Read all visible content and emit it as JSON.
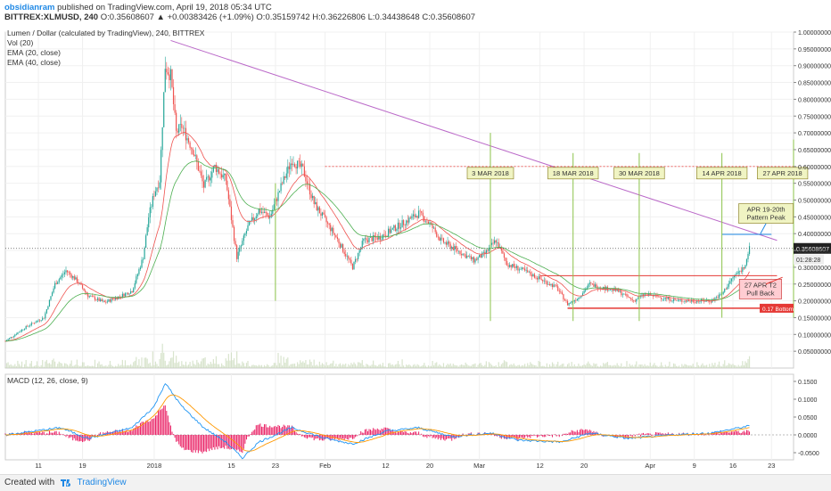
{
  "header": {
    "username": "obsidianram",
    "published": "published on TradingView.com, April 19, 2018 05:34 UTC",
    "symbol": "BITTREX:XLMUSD, 240",
    "ohlc": "O:0.35608607 ▲ +0.00383426 (+1.09%) O:0.35159742 H:0.36226806 L:0.34438648 C:0.35608607"
  },
  "legend": {
    "title": "Lumen / Dollar (calculated by TradingView), 240, BITTREX",
    "vol": "Vol (20)",
    "ema20": "EMA (20, close)",
    "ema40": "EMA (40, close)",
    "macd": "MACD (12, 26, close, 9)"
  },
  "footer": {
    "created": "Created with",
    "brand": "TradingView",
    "logo": "tradingview-logo-icon"
  },
  "colors": {
    "up": "#26a69a",
    "down": "#ef5350",
    "ema20": "#ef5350",
    "ema40": "#4caf50",
    "trend": "#ba68c8",
    "vline": "#8bc34a",
    "macd": "#2196f3",
    "signal": "#ff9800",
    "hist": "#e91e63",
    "support": "#e53935",
    "peak": "#1e88e5",
    "volume": "#c8d8b8"
  },
  "chart_data": {
    "type": "candlestick",
    "ylim": [
      0.0,
      1.0
    ],
    "price_ticks": [
      "1.00000000",
      "0.95000000",
      "0.90000000",
      "0.85000000",
      "0.80000000",
      "0.75000000",
      "0.70000000",
      "0.65000000",
      "0.60000000",
      "0.55000000",
      "0.50000000",
      "0.45000000",
      "0.40000000",
      "0.35000000",
      "0.30000000",
      "0.25000000",
      "0.20000000",
      "0.15000000",
      "0.10000000",
      "0.05000000"
    ],
    "macd_ticks": [
      "0.1500",
      "0.1000",
      "0.0500",
      "0.0000",
      "-0.0500"
    ],
    "x_ticks": [
      {
        "d": "2017-12-11",
        "label": "11"
      },
      {
        "d": "2017-12-19",
        "label": "19"
      },
      {
        "d": "2018-01-01",
        "label": "2018"
      },
      {
        "d": "2018-01-15",
        "label": "15"
      },
      {
        "d": "2018-01-23",
        "label": "23"
      },
      {
        "d": "2018-02-01",
        "label": "Feb"
      },
      {
        "d": "2018-02-12",
        "label": "12"
      },
      {
        "d": "2018-02-20",
        "label": "20"
      },
      {
        "d": "2018-03-01",
        "label": "Mar"
      },
      {
        "d": "2018-03-12",
        "label": "12"
      },
      {
        "d": "2018-03-20",
        "label": "20"
      },
      {
        "d": "2018-04-01",
        "label": "Apr"
      },
      {
        "d": "2018-04-09",
        "label": "9"
      },
      {
        "d": "2018-04-16",
        "label": "16"
      },
      {
        "d": "2018-04-23",
        "label": "23"
      }
    ],
    "x_range": [
      "2017-12-05",
      "2018-04-27"
    ],
    "price_path": [
      [
        "2017-12-05",
        0.08
      ],
      [
        "2017-12-09",
        0.125
      ],
      [
        "2017-12-12",
        0.15
      ],
      [
        "2017-12-14",
        0.25
      ],
      [
        "2017-12-16",
        0.29
      ],
      [
        "2017-12-18",
        0.26
      ],
      [
        "2017-12-20",
        0.215
      ],
      [
        "2017-12-23",
        0.195
      ],
      [
        "2017-12-26",
        0.215
      ],
      [
        "2017-12-28",
        0.23
      ],
      [
        "2017-12-30",
        0.33
      ],
      [
        "2017-12-31",
        0.45
      ],
      [
        "2018-01-01",
        0.52
      ],
      [
        "2018-01-02",
        0.56
      ],
      [
        "2018-01-03",
        0.9
      ],
      [
        "2018-01-04",
        0.87
      ],
      [
        "2018-01-05",
        0.7
      ],
      [
        "2018-01-06",
        0.72
      ],
      [
        "2018-01-08",
        0.65
      ],
      [
        "2018-01-10",
        0.54
      ],
      [
        "2018-01-12",
        0.6
      ],
      [
        "2018-01-14",
        0.56
      ],
      [
        "2018-01-16",
        0.33
      ],
      [
        "2018-01-18",
        0.42
      ],
      [
        "2018-01-20",
        0.47
      ],
      [
        "2018-01-22",
        0.45
      ],
      [
        "2018-01-24",
        0.54
      ],
      [
        "2018-01-26",
        0.62
      ],
      [
        "2018-01-28",
        0.59
      ],
      [
        "2018-01-30",
        0.49
      ],
      [
        "2018-02-01",
        0.44
      ],
      [
        "2018-02-03",
        0.39
      ],
      [
        "2018-02-06",
        0.3
      ],
      [
        "2018-02-08",
        0.38
      ],
      [
        "2018-02-11",
        0.39
      ],
      [
        "2018-02-14",
        0.42
      ],
      [
        "2018-02-16",
        0.44
      ],
      [
        "2018-02-18",
        0.46
      ],
      [
        "2018-02-20",
        0.43
      ],
      [
        "2018-02-22",
        0.38
      ],
      [
        "2018-02-25",
        0.35
      ],
      [
        "2018-02-28",
        0.32
      ],
      [
        "2018-03-02",
        0.34
      ],
      [
        "2018-03-04",
        0.38
      ],
      [
        "2018-03-06",
        0.31
      ],
      [
        "2018-03-09",
        0.29
      ],
      [
        "2018-03-12",
        0.265
      ],
      [
        "2018-03-15",
        0.24
      ],
      [
        "2018-03-17",
        0.19
      ],
      [
        "2018-03-19",
        0.21
      ],
      [
        "2018-03-21",
        0.25
      ],
      [
        "2018-03-23",
        0.24
      ],
      [
        "2018-03-26",
        0.23
      ],
      [
        "2018-03-29",
        0.2
      ],
      [
        "2018-03-31",
        0.22
      ],
      [
        "2018-04-03",
        0.21
      ],
      [
        "2018-04-06",
        0.2
      ],
      [
        "2018-04-09",
        0.2
      ],
      [
        "2018-04-12",
        0.2
      ],
      [
        "2018-04-14",
        0.22
      ],
      [
        "2018-04-16",
        0.27
      ],
      [
        "2018-04-18",
        0.3
      ],
      [
        "2018-04-19",
        0.356
      ]
    ],
    "last_price": "0.35608607",
    "countdown": "01:28:28",
    "low_label": "0.17 Bottom",
    "trendline": [
      [
        "2018-01-04",
        0.975
      ],
      [
        "2018-04-24",
        0.38
      ]
    ],
    "resistance_dotted": [
      [
        "2018-02-01",
        0.6
      ],
      [
        "2018-04-27",
        0.6
      ]
    ],
    "support_line": [
      [
        "2018-03-17",
        0.178
      ],
      [
        "2018-04-26",
        0.178
      ]
    ],
    "consolidation_line": [
      [
        "2018-03-12",
        0.275
      ],
      [
        "2018-04-24",
        0.275
      ]
    ],
    "peak_line": [
      [
        "2018-04-14",
        0.398
      ],
      [
        "2018-04-23",
        0.398
      ]
    ],
    "vertical_lines": [
      {
        "d": "2018-01-23",
        "y1": 0.2,
        "y2": 0.55
      },
      {
        "d": "2018-03-03",
        "y1": 0.14,
        "y2": 0.7
      },
      {
        "d": "2018-03-18",
        "y1": 0.14,
        "y2": 0.64
      },
      {
        "d": "2018-03-30",
        "y1": 0.14,
        "y2": 0.64
      },
      {
        "d": "2018-04-14",
        "y1": 0.15,
        "y2": 0.64
      },
      {
        "d": "2018-04-27",
        "y1": 0.15,
        "y2": 0.68
      }
    ],
    "annotations": [
      {
        "d": "2018-03-03",
        "y": 0.58,
        "lines": [
          "3 MAR 2018"
        ]
      },
      {
        "d": "2018-03-18",
        "y": 0.58,
        "lines": [
          "18 MAR 2018"
        ]
      },
      {
        "d": "2018-03-30",
        "y": 0.58,
        "lines": [
          "30 MAR 2018"
        ]
      },
      {
        "d": "2018-04-14",
        "y": 0.58,
        "lines": [
          "14 APR 2018"
        ]
      },
      {
        "d": "2018-04-25",
        "y": 0.58,
        "lines": [
          "27 APR 2018"
        ]
      },
      {
        "d": "2018-04-22",
        "y": 0.46,
        "lines": [
          "APR 19-20th",
          "Pattern Peak"
        ]
      },
      {
        "d": "2018-04-21",
        "y": 0.235,
        "lines": [
          "27 APR T2",
          "Pull Back"
        ]
      }
    ],
    "macd_path": [
      [
        "2017-12-05",
        0.0
      ],
      [
        "2017-12-15",
        0.02
      ],
      [
        "2017-12-20",
        -0.01
      ],
      [
        "2017-12-28",
        0.02
      ],
      [
        "2018-01-01",
        0.08
      ],
      [
        "2018-01-03",
        0.145
      ],
      [
        "2018-01-06",
        0.08
      ],
      [
        "2018-01-10",
        0.02
      ],
      [
        "2018-01-14",
        -0.02
      ],
      [
        "2018-01-17",
        -0.065
      ],
      [
        "2018-01-20",
        -0.02
      ],
      [
        "2018-01-26",
        0.02
      ],
      [
        "2018-02-01",
        -0.01
      ],
      [
        "2018-02-06",
        -0.025
      ],
      [
        "2018-02-12",
        0.01
      ],
      [
        "2018-02-18",
        0.02
      ],
      [
        "2018-02-24",
        -0.005
      ],
      [
        "2018-03-03",
        0.005
      ],
      [
        "2018-03-08",
        -0.015
      ],
      [
        "2018-03-16",
        -0.02
      ],
      [
        "2018-03-21",
        0.005
      ],
      [
        "2018-03-28",
        -0.01
      ],
      [
        "2018-04-05",
        0.0
      ],
      [
        "2018-04-12",
        0.005
      ],
      [
        "2018-04-19",
        0.025
      ]
    ]
  }
}
